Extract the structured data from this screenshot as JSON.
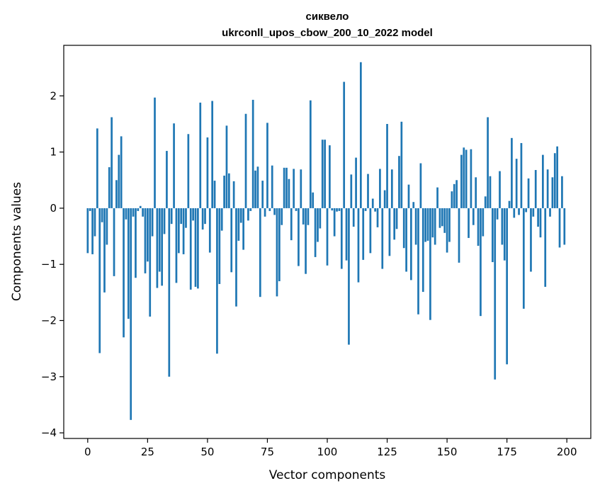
{
  "chart_data": {
    "type": "bar",
    "title_line1": "сиквело",
    "title_line2": "ukrconll_upos_cbow_200_10_2022 model",
    "xlabel": "Vector components",
    "ylabel": "Components values",
    "xlim": [
      -10,
      210
    ],
    "ylim": [
      -4.1,
      2.9
    ],
    "x_ticks": [
      0,
      25,
      50,
      75,
      100,
      125,
      150,
      175,
      200
    ],
    "y_ticks": [
      -4,
      -3,
      -2,
      -1,
      0,
      1,
      2
    ],
    "y_tick_labels": [
      "−4",
      "−3",
      "−2",
      "−1",
      "0",
      "1",
      "2"
    ],
    "grid": false,
    "color": "#1f77b4",
    "x": [
      0,
      1,
      2,
      3,
      4,
      5,
      6,
      7,
      8,
      9,
      10,
      11,
      12,
      13,
      14,
      15,
      16,
      17,
      18,
      19,
      20,
      21,
      22,
      23,
      24,
      25,
      26,
      27,
      28,
      29,
      30,
      31,
      32,
      33,
      34,
      35,
      36,
      37,
      38,
      39,
      40,
      41,
      42,
      43,
      44,
      45,
      46,
      47,
      48,
      49,
      50,
      51,
      52,
      53,
      54,
      55,
      56,
      57,
      58,
      59,
      60,
      61,
      62,
      63,
      64,
      65,
      66,
      67,
      68,
      69,
      70,
      71,
      72,
      73,
      74,
      75,
      76,
      77,
      78,
      79,
      80,
      81,
      82,
      83,
      84,
      85,
      86,
      87,
      88,
      89,
      90,
      91,
      92,
      93,
      94,
      95,
      96,
      97,
      98,
      99,
      100,
      101,
      102,
      103,
      104,
      105,
      106,
      107,
      108,
      109,
      110,
      111,
      112,
      113,
      114,
      115,
      116,
      117,
      118,
      119,
      120,
      121,
      122,
      123,
      124,
      125,
      126,
      127,
      128,
      129,
      130,
      131,
      132,
      133,
      134,
      135,
      136,
      137,
      138,
      139,
      140,
      141,
      142,
      143,
      144,
      145,
      146,
      147,
      148,
      149,
      150,
      151,
      152,
      153,
      154,
      155,
      156,
      157,
      158,
      159,
      160,
      161,
      162,
      163,
      164,
      165,
      166,
      167,
      168,
      169,
      170,
      171,
      172,
      173,
      174,
      175,
      176,
      177,
      178,
      179,
      180,
      181,
      182,
      183,
      184,
      185,
      186,
      187,
      188,
      189,
      190,
      191,
      192,
      193,
      194,
      195,
      196,
      197,
      198,
      199
    ],
    "values": [
      -0.8,
      -0.05,
      -0.82,
      -0.5,
      1.42,
      -2.58,
      -0.25,
      -1.5,
      -0.65,
      0.73,
      1.62,
      -1.21,
      0.5,
      0.95,
      1.28,
      -2.3,
      -0.2,
      -1.97,
      -3.77,
      -0.15,
      -1.24,
      -0.05,
      0.04,
      -0.15,
      -1.16,
      -0.95,
      -1.93,
      -0.5,
      1.97,
      -1.42,
      -1.13,
      -1.38,
      -0.46,
      1.02,
      -3.0,
      -0.28,
      1.51,
      -1.33,
      -0.8,
      -0.28,
      -0.82,
      -0.35,
      1.32,
      -1.45,
      -0.22,
      -1.4,
      -1.43,
      1.88,
      -0.38,
      -0.28,
      1.26,
      -0.79,
      1.91,
      0.49,
      -2.59,
      -1.35,
      -0.4,
      0.58,
      1.47,
      0.62,
      -1.14,
      0.48,
      -1.75,
      -0.58,
      -0.26,
      -0.74,
      1.68,
      -0.22,
      -0.05,
      1.93,
      0.67,
      0.74,
      -1.58,
      0.49,
      -0.15,
      1.52,
      -0.05,
      0.76,
      -0.12,
      -1.57,
      -1.3,
      -0.3,
      0.72,
      0.72,
      0.52,
      -0.57,
      0.7,
      -0.05,
      -1.03,
      0.69,
      -0.29,
      -1.17,
      -0.3,
      1.92,
      0.28,
      -0.87,
      -0.6,
      -0.36,
      1.22,
      1.22,
      -1.02,
      1.12,
      -0.04,
      -0.5,
      -0.06,
      -0.05,
      -1.08,
      2.25,
      -0.93,
      -2.43,
      0.6,
      -0.33,
      0.9,
      -1.32,
      2.6,
      -0.92,
      -0.05,
      0.61,
      -0.8,
      0.17,
      -0.06,
      -0.34,
      0.7,
      -1.08,
      0.32,
      1.5,
      -0.85,
      0.69,
      -0.56,
      -0.37,
      0.93,
      1.54,
      -0.71,
      -1.13,
      0.42,
      -1.28,
      0.11,
      -0.65,
      -1.89,
      0.8,
      -1.49,
      -0.6,
      -0.58,
      -1.99,
      -0.52,
      -0.65,
      0.37,
      -0.35,
      -0.32,
      -0.44,
      -0.79,
      -0.6,
      0.3,
      0.43,
      0.5,
      -0.97,
      0.95,
      1.08,
      1.04,
      -0.53,
      1.05,
      -0.3,
      0.55,
      -0.67,
      -1.92,
      -0.5,
      0.21,
      1.62,
      0.57,
      -0.96,
      -3.05,
      -0.2,
      0.66,
      -0.65,
      -0.93,
      -2.78,
      0.13,
      1.25,
      -0.17,
      0.88,
      -0.12,
      1.16,
      -1.79,
      -0.07,
      0.53,
      -1.13,
      -0.15,
      0.68,
      -0.33,
      -0.52,
      0.95,
      -1.4,
      0.69,
      -0.15,
      0.55,
      0.98,
      1.1,
      -0.7,
      0.57,
      -0.65
    ]
  }
}
